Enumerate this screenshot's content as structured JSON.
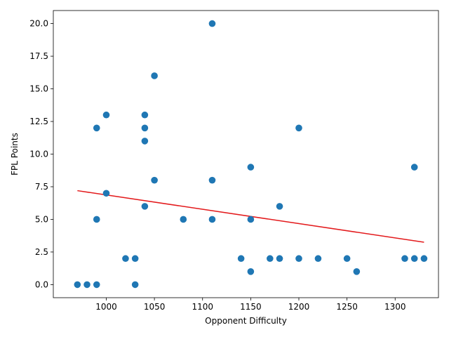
{
  "chart_data": {
    "type": "scatter",
    "title": "",
    "xlabel": "Opponent Difficulty",
    "ylabel": "FPL Points",
    "xlim": [
      945,
      1345
    ],
    "ylim": [
      -1.0,
      21.0
    ],
    "x_ticks": [
      1000,
      1050,
      1100,
      1150,
      1200,
      1250,
      1300
    ],
    "x_tick_labels": [
      "1000",
      "1050",
      "1100",
      "1150",
      "1200",
      "1250",
      "1300"
    ],
    "y_ticks": [
      0.0,
      2.5,
      5.0,
      7.5,
      10.0,
      12.5,
      15.0,
      17.5,
      20.0
    ],
    "y_tick_labels": [
      "0.0",
      "2.5",
      "5.0",
      "7.5",
      "10.0",
      "12.5",
      "15.0",
      "17.5",
      "20.0"
    ],
    "grid": false,
    "colors": {
      "points": "#1f77b4",
      "trend": "#e31a1c"
    },
    "points": [
      {
        "x": 970,
        "y": 0
      },
      {
        "x": 980,
        "y": 0
      },
      {
        "x": 990,
        "y": 0
      },
      {
        "x": 990,
        "y": 5
      },
      {
        "x": 990,
        "y": 12
      },
      {
        "x": 1000,
        "y": 13
      },
      {
        "x": 1000,
        "y": 7
      },
      {
        "x": 1020,
        "y": 2
      },
      {
        "x": 1030,
        "y": 2
      },
      {
        "x": 1030,
        "y": 0
      },
      {
        "x": 1040,
        "y": 13
      },
      {
        "x": 1040,
        "y": 12
      },
      {
        "x": 1040,
        "y": 11
      },
      {
        "x": 1040,
        "y": 6
      },
      {
        "x": 1050,
        "y": 16
      },
      {
        "x": 1050,
        "y": 8
      },
      {
        "x": 1080,
        "y": 5
      },
      {
        "x": 1110,
        "y": 20
      },
      {
        "x": 1110,
        "y": 8
      },
      {
        "x": 1110,
        "y": 5
      },
      {
        "x": 1140,
        "y": 2
      },
      {
        "x": 1150,
        "y": 9
      },
      {
        "x": 1150,
        "y": 5
      },
      {
        "x": 1150,
        "y": 1
      },
      {
        "x": 1170,
        "y": 2
      },
      {
        "x": 1180,
        "y": 6
      },
      {
        "x": 1180,
        "y": 2
      },
      {
        "x": 1200,
        "y": 12
      },
      {
        "x": 1200,
        "y": 2
      },
      {
        "x": 1220,
        "y": 2
      },
      {
        "x": 1250,
        "y": 2
      },
      {
        "x": 1260,
        "y": 1
      },
      {
        "x": 1310,
        "y": 2
      },
      {
        "x": 1320,
        "y": 9
      },
      {
        "x": 1320,
        "y": 2
      },
      {
        "x": 1330,
        "y": 2
      }
    ],
    "trend_line": {
      "x": [
        970,
        1330
      ],
      "y": [
        7.2,
        3.25
      ]
    }
  }
}
